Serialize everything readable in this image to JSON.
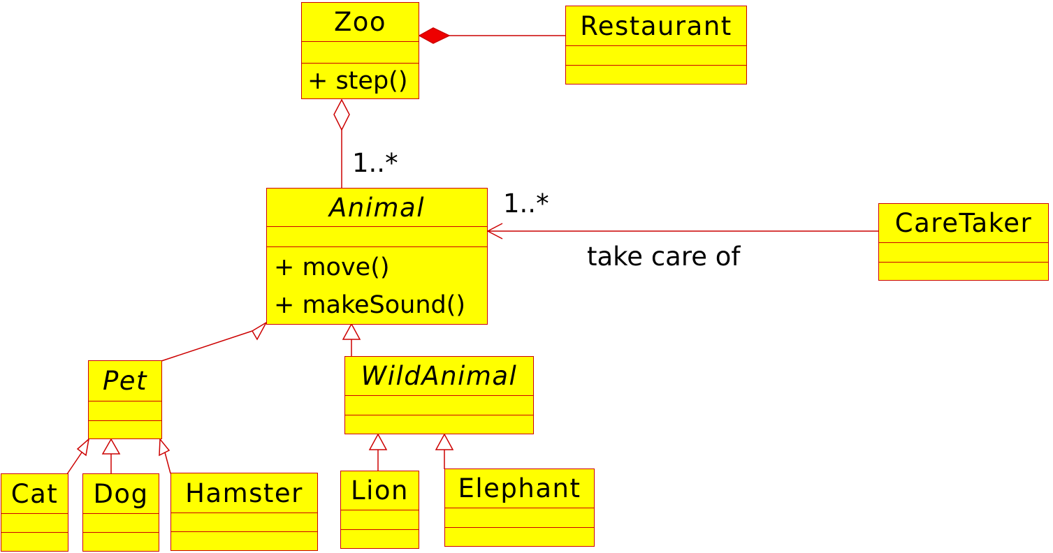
{
  "colors": {
    "fill": "#ffff00",
    "stroke": "#cc0000",
    "text": "#000000"
  },
  "classes": {
    "zoo": {
      "name": "Zoo",
      "operations": [
        "+ step()"
      ]
    },
    "restaurant": {
      "name": "Restaurant"
    },
    "animal": {
      "name": "Animal",
      "abstract": true,
      "operations": [
        "+ move()",
        "+ makeSound()"
      ]
    },
    "caretaker": {
      "name": "CareTaker"
    },
    "pet": {
      "name": "Pet",
      "abstract": true
    },
    "wildanimal": {
      "name": "WildAnimal",
      "abstract": true
    },
    "cat": {
      "name": "Cat"
    },
    "dog": {
      "name": "Dog"
    },
    "hamster": {
      "name": "Hamster"
    },
    "lion": {
      "name": "Lion"
    },
    "elephant": {
      "name": "Elephant"
    }
  },
  "relations": {
    "zoo_animal_multiplicity": "1..*",
    "caretaker_animal_multiplicity": "1..*",
    "caretaker_animal_label": "take care of"
  }
}
